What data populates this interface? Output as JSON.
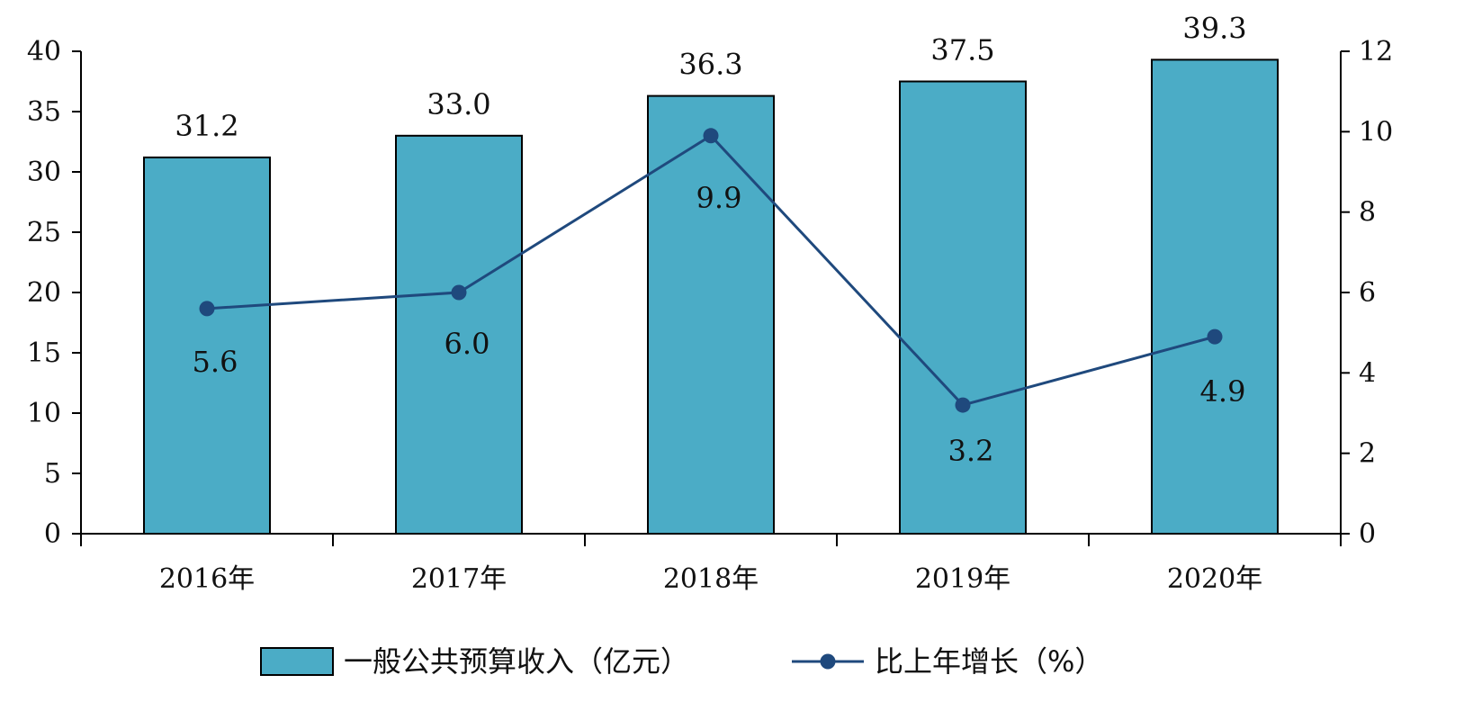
{
  "chart_data": {
    "type": "bar",
    "categories": [
      "2016年",
      "2017年",
      "2018年",
      "2019年",
      "2020年"
    ],
    "series": [
      {
        "name": "一般公共预算收入（亿元）",
        "type": "bar",
        "axis": "left",
        "values": [
          31.2,
          33.0,
          36.3,
          37.5,
          39.3
        ],
        "labels": [
          "31.2",
          "33.0",
          "36.3",
          "37.5",
          "39.3"
        ],
        "color": "#4BACC6"
      },
      {
        "name": "比上年增长（%）",
        "type": "line",
        "axis": "right",
        "values": [
          5.6,
          6.0,
          9.9,
          3.2,
          4.9
        ],
        "labels": [
          "5.6",
          "6.0",
          "9.9",
          "3.2",
          "4.9"
        ],
        "color": "#1F497D"
      }
    ],
    "y_left": {
      "ylim": [
        0,
        40
      ],
      "ticks": [
        0,
        5,
        10,
        15,
        20,
        25,
        30,
        35,
        40
      ]
    },
    "y_right": {
      "ylim": [
        0,
        12
      ],
      "ticks": [
        0,
        2,
        4,
        6,
        8,
        10,
        12
      ]
    },
    "title": "",
    "xlabel": "",
    "ylabel": "",
    "grid": false,
    "legend_position": "bottom"
  }
}
